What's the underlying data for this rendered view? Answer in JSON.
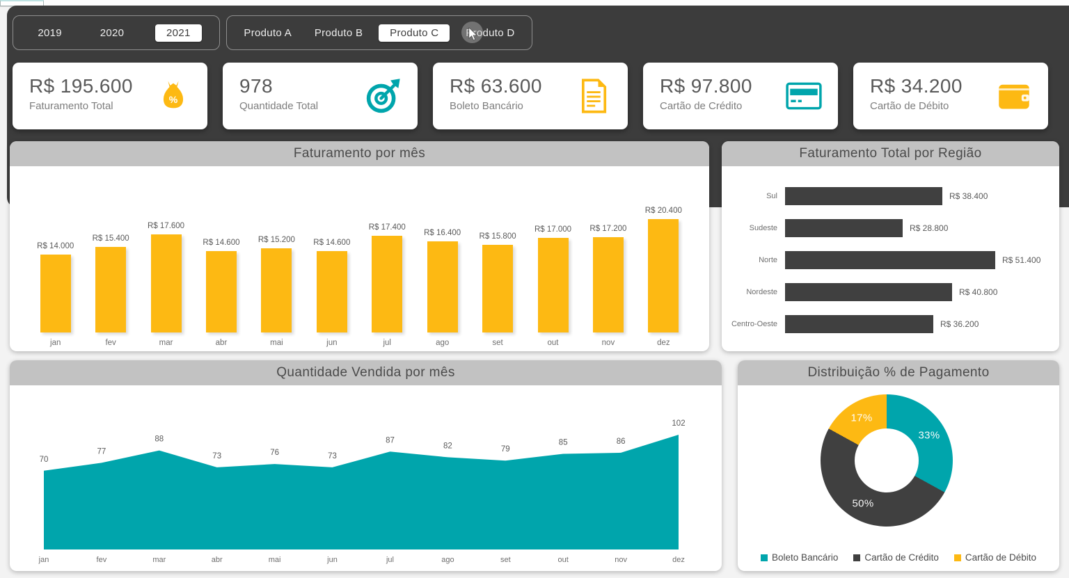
{
  "colors": {
    "yellow": "#FDB913",
    "teal": "#00A5AC",
    "dark": "#404040",
    "panel": "#3C3C3C",
    "title_bar": "#C2C2C2"
  },
  "filters": {
    "years": {
      "options": [
        "2019",
        "2020",
        "2021"
      ],
      "selected": "2021"
    },
    "products": {
      "options": [
        "Produto A",
        "Produto B",
        "Produto C",
        "Produto D"
      ],
      "selected": "Produto C"
    }
  },
  "kpis": [
    {
      "value": "R$ 195.600",
      "label": "Faturamento Total",
      "icon": "money-bag-icon"
    },
    {
      "value": "978",
      "label": "Quantidade Total",
      "icon": "target-icon"
    },
    {
      "value": "R$ 63.600",
      "label": "Boleto Bancário",
      "icon": "document-icon"
    },
    {
      "value": "R$ 97.800",
      "label": "Cartão de Crédito",
      "icon": "credit-card-icon"
    },
    {
      "value": "R$ 34.200",
      "label": "Cartão de Débito",
      "icon": "wallet-icon"
    }
  ],
  "chart_data": [
    {
      "type": "bar",
      "title": "Faturamento por mês",
      "categories": [
        "jan",
        "fev",
        "mar",
        "abr",
        "mai",
        "jun",
        "jul",
        "ago",
        "set",
        "out",
        "nov",
        "dez"
      ],
      "values": [
        14000,
        15400,
        17600,
        14600,
        15200,
        14600,
        17400,
        16400,
        15800,
        17000,
        17200,
        20400
      ],
      "labels": [
        "R$ 14.000",
        "R$ 15.400",
        "R$ 17.600",
        "R$ 14.600",
        "R$ 15.200",
        "R$ 14.600",
        "R$ 17.400",
        "R$ 16.400",
        "R$ 15.800",
        "R$ 17.000",
        "R$ 17.200",
        "R$ 20.400"
      ],
      "color": "#FDB913",
      "ylim": [
        0,
        20400
      ],
      "grid": false,
      "legend": false
    },
    {
      "type": "bar",
      "orientation": "horizontal",
      "title": "Faturamento Total por Região",
      "categories": [
        "Sul",
        "Sudeste",
        "Norte",
        "Nordeste",
        "Centro-Oeste"
      ],
      "values": [
        38400,
        28800,
        51400,
        40800,
        36200
      ],
      "labels": [
        "R$ 38.400",
        "R$ 28.800",
        "R$ 51.400",
        "R$ 40.800",
        "R$ 36.200"
      ],
      "color": "#404040",
      "xlim": [
        0,
        51400
      ],
      "grid": false,
      "legend": false
    },
    {
      "type": "area",
      "title": "Quantidade Vendida por mês",
      "categories": [
        "jan",
        "fev",
        "mar",
        "abr",
        "mai",
        "jun",
        "jul",
        "ago",
        "set",
        "out",
        "nov",
        "dez"
      ],
      "values": [
        70,
        77,
        88,
        73,
        76,
        73,
        87,
        82,
        79,
        85,
        86,
        102
      ],
      "color": "#00A5AC",
      "ylim": [
        0,
        102
      ],
      "grid": false,
      "legend": false
    },
    {
      "type": "pie",
      "donut": true,
      "title": "Distribuição % de Pagamento",
      "categories": [
        "Boleto Bancário",
        "Cartão de Crédito",
        "Cartão de Débito"
      ],
      "values": [
        33,
        50,
        17
      ],
      "labels": [
        "33%",
        "50%",
        "17%"
      ],
      "colors": [
        "#00A5AC",
        "#404040",
        "#FDB913"
      ],
      "legend_position": "bottom"
    }
  ]
}
